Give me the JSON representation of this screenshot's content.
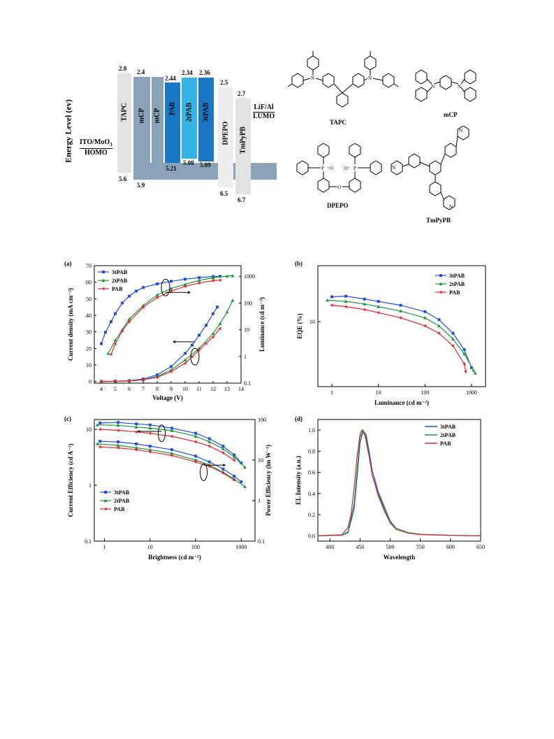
{
  "energy_diagram": {
    "ylabel": "Energy Level (ev)",
    "left_electrode_top": "ITO/MoO",
    "left_electrode_sub": "3",
    "left_electrode_bottom": "HOMO",
    "right_electrode_top": "LiF/Al",
    "right_electrode_bottom": "LUMO",
    "layers": [
      {
        "name": "TAPC",
        "lumo": "2.0",
        "homo": "5.6",
        "color": "#e3e3e3"
      },
      {
        "name": "mCP",
        "lumo": "2.4",
        "homo": "5.9",
        "color": "#8aa3b8"
      },
      {
        "name": "mCP",
        "lumo": "",
        "homo": "",
        "color": "#8aa3b8"
      },
      {
        "name": "PAB",
        "lumo": "2.44",
        "homo": "5.21",
        "color": "#1779c6"
      },
      {
        "name": "2tPAB",
        "lumo": "2.34",
        "homo": "5.08",
        "color": "#36b4e8"
      },
      {
        "name": "3tPAB",
        "lumo": "2.36",
        "homo": "5.09",
        "color": "#1977c4"
      },
      {
        "name": "DPEPO",
        "lumo": "2.5",
        "homo": "6.5",
        "color": "#eeeeee"
      },
      {
        "name": "TmPyPB",
        "lumo": "2.7",
        "homo": "6.7",
        "color": "#e3e3e3"
      }
    ]
  },
  "molecules": {
    "tapc": "TAPC",
    "mcp": "mCP",
    "dpepo": "DPEPO",
    "tmpypb": "TmPyPB"
  },
  "colors": {
    "3tPAB": "#1f4fe0",
    "2tPAB": "#1a9a3a",
    "PAB": "#e8242a"
  },
  "chart_data": [
    {
      "panel": "(a)",
      "type": "line",
      "xlabel": "Voltage (V)",
      "ylabel": "Current density (mA cm⁻²)",
      "y2label": "Luminance (cd m⁻²)",
      "xlim": [
        3.5,
        14
      ],
      "ylim": [
        -1,
        70
      ],
      "y2lim": [
        0.1,
        2500
      ],
      "y2scale": "log",
      "xticks": [
        "4",
        "5",
        "6",
        "7",
        "8",
        "9",
        "10",
        "11",
        "12",
        "13",
        "14"
      ],
      "yticks": [
        "0",
        "10",
        "20",
        "30",
        "40",
        "50",
        "60",
        "70"
      ],
      "y2ticks": [
        "0.1",
        "1",
        "10",
        "100",
        "1000"
      ],
      "legend": [
        "3tPAB",
        "2tPAB",
        "PAB"
      ],
      "current_density": [
        {
          "name": "3tPAB",
          "x": [
            4,
            5,
            6,
            7,
            8,
            9,
            10,
            10.5,
            11,
            11.5,
            12,
            12.3
          ],
          "y": [
            0,
            0.2,
            0.5,
            1.5,
            4,
            9,
            17,
            22,
            28,
            34,
            41,
            45
          ]
        },
        {
          "name": "2tPAB",
          "x": [
            4,
            5,
            6,
            7,
            8,
            9,
            10,
            11,
            12,
            12.5,
            13,
            13.4
          ],
          "y": [
            0,
            0.1,
            0.3,
            1,
            3,
            7,
            13,
            20,
            29,
            35,
            42,
            49
          ]
        },
        {
          "name": "PAB",
          "x": [
            4,
            5,
            6,
            7,
            8,
            9,
            10,
            10.5,
            11,
            11.5,
            12,
            12.5
          ],
          "y": [
            0,
            0.1,
            0.3,
            1,
            2.5,
            6,
            11,
            15,
            19,
            23,
            27,
            32
          ]
        }
      ],
      "luminance": [
        {
          "name": "3tPAB",
          "x": [
            4,
            4.3,
            4.7,
            5,
            5.5,
            6,
            6.5,
            7,
            8,
            9,
            10,
            11,
            12,
            12.5
          ],
          "y": [
            3,
            8,
            20,
            40,
            100,
            180,
            280,
            380,
            520,
            650,
            780,
            890,
            980,
            1000
          ]
        },
        {
          "name": "2tPAB",
          "x": [
            4.5,
            5,
            5.5,
            6,
            7,
            8,
            9,
            10,
            11,
            12,
            13,
            13.4
          ],
          "y": [
            1.3,
            4,
            10,
            25,
            80,
            200,
            350,
            500,
            700,
            880,
            1020,
            1050
          ]
        },
        {
          "name": "PAB",
          "x": [
            4.7,
            5,
            5.5,
            6,
            7,
            8,
            9,
            10,
            11,
            12,
            12.5
          ],
          "y": [
            1.2,
            3,
            9,
            20,
            70,
            160,
            280,
            420,
            560,
            690,
            720
          ]
        }
      ],
      "annotation_arrows": [
        "right",
        "left"
      ]
    },
    {
      "panel": "(b)",
      "type": "line",
      "xlabel": "Luminance (cd m⁻²)",
      "ylabel": "EQE (%)",
      "xscale": "log",
      "yscale": "log",
      "xlim": [
        0.5,
        2000
      ],
      "ylim": [
        2,
        40
      ],
      "xticks": [
        "1",
        "10",
        "100",
        "1000"
      ],
      "yticks": [
        "10"
      ],
      "legend": [
        "3tPAB",
        "2tPAB",
        "PAB"
      ],
      "series": [
        {
          "name": "3tPAB",
          "x": [
            1,
            2,
            5,
            10,
            30,
            100,
            200,
            400,
            700,
            1000
          ],
          "y": [
            18.5,
            18.8,
            17.5,
            16.5,
            15,
            12.8,
            10.5,
            7.5,
            5,
            3.2
          ]
        },
        {
          "name": "2tPAB",
          "x": [
            0.8,
            2,
            5,
            10,
            30,
            100,
            200,
            400,
            700,
            1100,
            1200
          ],
          "y": [
            17,
            16.5,
            15.5,
            14.5,
            13,
            11,
            9,
            6.5,
            4.5,
            3,
            2.8
          ]
        },
        {
          "name": "PAB",
          "x": [
            1,
            2,
            5,
            10,
            30,
            100,
            200,
            400,
            700,
            750
          ],
          "y": [
            15,
            14.5,
            13.5,
            12.5,
            11,
            9,
            7.5,
            5.5,
            3.5,
            2.9
          ]
        }
      ]
    },
    {
      "panel": "(c)",
      "type": "line",
      "xlabel": "Brightness (cd m⁻²)",
      "ylabel": "Current Efficiency (cd A⁻¹)",
      "y2label": "Power Efficiency (lm W⁻¹)",
      "xscale": "log",
      "yscale": "log",
      "y2scale": "log",
      "xlim": [
        0.6,
        2000
      ],
      "ylim": [
        0.1,
        15
      ],
      "y2lim": [
        0.1,
        100
      ],
      "xticks": [
        "1",
        "10",
        "100",
        "1000"
      ],
      "yticks": [
        "0.1",
        "1",
        "10"
      ],
      "y2ticks": [
        "0.1",
        "1",
        "10",
        "100"
      ],
      "legend": [
        "3tPAB",
        "2tPAB",
        "PAB"
      ],
      "current_efficiency": [
        {
          "name": "3tPAB",
          "x": [
            0.8,
            2,
            5,
            10,
            30,
            100,
            200,
            400,
            700,
            1000
          ],
          "y": [
            13,
            13.3,
            12.5,
            12,
            10.5,
            8.5,
            6.8,
            5,
            3.5,
            2.5
          ]
        },
        {
          "name": "2tPAB",
          "x": [
            0.7,
            2,
            5,
            10,
            30,
            100,
            200,
            400,
            700,
            1200
          ],
          "y": [
            12,
            11.8,
            11,
            10.5,
            9.5,
            7.5,
            6,
            4.5,
            3.2,
            2.1
          ]
        },
        {
          "name": "PAB",
          "x": [
            0.8,
            2,
            5,
            10,
            30,
            100,
            200,
            400,
            700
          ],
          "y": [
            10,
            9.6,
            9,
            8.5,
            7.5,
            6,
            5,
            3.8,
            2.8
          ]
        }
      ],
      "power_efficiency": [
        {
          "name": "3tPAB",
          "x": [
            0.8,
            2,
            5,
            10,
            30,
            100,
            200,
            400,
            700,
            1000
          ],
          "y": [
            29,
            28,
            25,
            22,
            18,
            12.5,
            9,
            6,
            4,
            2.9
          ]
        },
        {
          "name": "2tPAB",
          "x": [
            0.7,
            2,
            5,
            10,
            30,
            100,
            200,
            400,
            700,
            1200
          ],
          "y": [
            25,
            23,
            20,
            18,
            14.5,
            10,
            7.5,
            5,
            3.4,
            2.2
          ]
        },
        {
          "name": "PAB",
          "x": [
            0.8,
            2,
            5,
            10,
            30,
            100,
            200,
            400,
            700
          ],
          "y": [
            21,
            20,
            18,
            16,
            13,
            9,
            7,
            4.8,
            3.2
          ]
        }
      ],
      "annotation_arrows": [
        "left",
        "right"
      ]
    },
    {
      "panel": "(d)",
      "type": "line",
      "xlabel": "Wavelength",
      "ylabel": "EL Intensity (a.u.)",
      "xlim": [
        380,
        650
      ],
      "ylim": [
        -0.05,
        1.1
      ],
      "xticks": [
        "400",
        "450",
        "500",
        "550",
        "600",
        "650"
      ],
      "yticks": [
        "0.0",
        "0.2",
        "0.4",
        "0.6",
        "0.8",
        "1.0"
      ],
      "legend": [
        "3tPAB",
        "2tPAB",
        "PAB"
      ],
      "series": [
        {
          "name": "3tPAB",
          "x": [
            380,
            420,
            430,
            440,
            445,
            450,
            455,
            460,
            465,
            470,
            480,
            490,
            500,
            510,
            530,
            550,
            600,
            650
          ],
          "y": [
            0,
            0.005,
            0.03,
            0.25,
            0.55,
            0.88,
            0.99,
            0.96,
            0.8,
            0.62,
            0.42,
            0.28,
            0.14,
            0.07,
            0.03,
            0.015,
            0.005,
            0
          ]
        },
        {
          "name": "2tPAB",
          "x": [
            380,
            420,
            430,
            440,
            445,
            450,
            455,
            460,
            465,
            470,
            480,
            490,
            500,
            510,
            530,
            550,
            600,
            650
          ],
          "y": [
            0,
            0.006,
            0.04,
            0.3,
            0.62,
            0.93,
            1.0,
            0.93,
            0.76,
            0.58,
            0.4,
            0.26,
            0.13,
            0.07,
            0.03,
            0.015,
            0.005,
            0
          ]
        },
        {
          "name": "PAB",
          "x": [
            380,
            420,
            430,
            435,
            440,
            445,
            450,
            453,
            458,
            465,
            470,
            480,
            490,
            500,
            510,
            530,
            550,
            600,
            650
          ],
          "y": [
            0,
            0.01,
            0.08,
            0.2,
            0.45,
            0.75,
            0.96,
            1.0,
            0.95,
            0.75,
            0.58,
            0.38,
            0.24,
            0.12,
            0.06,
            0.025,
            0.012,
            0.004,
            0
          ]
        }
      ]
    }
  ]
}
